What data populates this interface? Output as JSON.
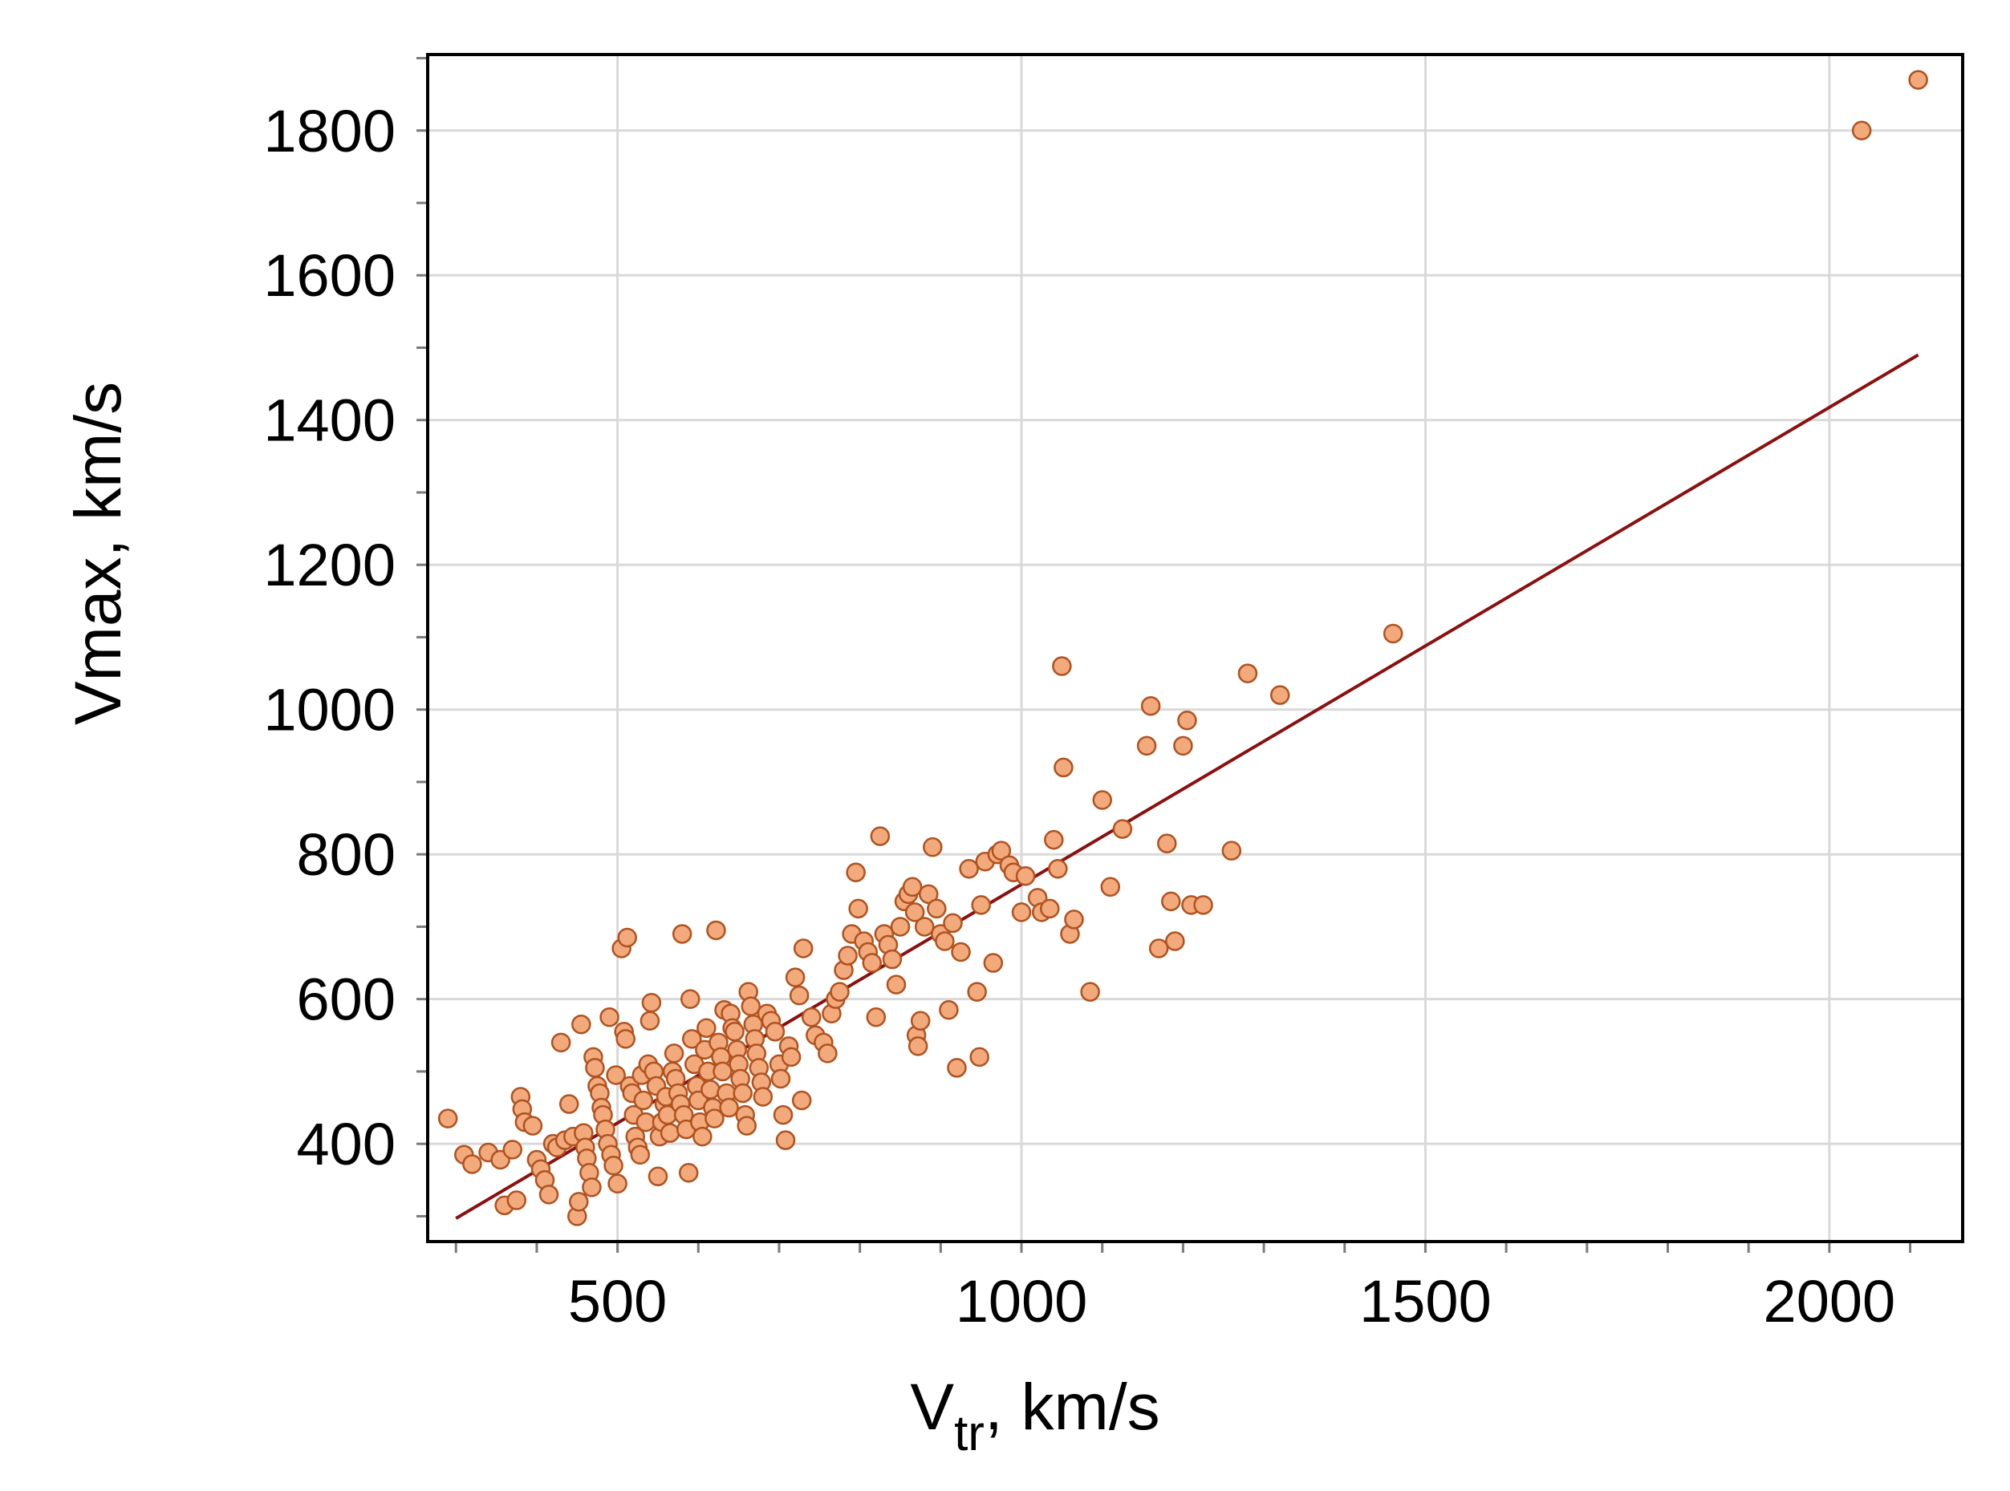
{
  "chart_data": {
    "type": "scatter",
    "title": "",
    "xlabel": {
      "main": "V",
      "sub": "tr",
      "rest": ", km/s"
    },
    "ylabel": "Vmax, km/s",
    "xlim": [
      265,
      2165
    ],
    "ylim": [
      265,
      1905
    ],
    "x_ticks": [
      500,
      1000,
      1500,
      2000
    ],
    "y_ticks": [
      400,
      600,
      800,
      1000,
      1200,
      1400,
      1600,
      1800
    ],
    "x_tick_labels": [
      "500",
      "1000",
      "1500",
      "2000"
    ],
    "y_tick_labels": [
      "400",
      "600",
      "800",
      "1000",
      "1200",
      "1400",
      "1600",
      "1800"
    ],
    "x_minor_step": 100,
    "y_minor_step": 100,
    "grid": true,
    "legend": "none",
    "point_color": "#f2a97c",
    "point_edge_color": "#b0521f",
    "line_color": "#8b1010",
    "regression_line": {
      "x": [
        300,
        2110
      ],
      "y": [
        297,
        1490
      ]
    },
    "points": [
      [
        290,
        435
      ],
      [
        310,
        385
      ],
      [
        320,
        372
      ],
      [
        340,
        388
      ],
      [
        355,
        378
      ],
      [
        360,
        315
      ],
      [
        370,
        392
      ],
      [
        375,
        322
      ],
      [
        380,
        465
      ],
      [
        382,
        448
      ],
      [
        385,
        430
      ],
      [
        395,
        425
      ],
      [
        400,
        378
      ],
      [
        405,
        365
      ],
      [
        410,
        350
      ],
      [
        415,
        330
      ],
      [
        420,
        400
      ],
      [
        425,
        395
      ],
      [
        430,
        540
      ],
      [
        435,
        405
      ],
      [
        440,
        455
      ],
      [
        445,
        410
      ],
      [
        450,
        300
      ],
      [
        452,
        320
      ],
      [
        455,
        565
      ],
      [
        458,
        415
      ],
      [
        460,
        395
      ],
      [
        462,
        380
      ],
      [
        465,
        360
      ],
      [
        468,
        340
      ],
      [
        470,
        520
      ],
      [
        472,
        505
      ],
      [
        475,
        480
      ],
      [
        478,
        470
      ],
      [
        480,
        450
      ],
      [
        482,
        440
      ],
      [
        485,
        420
      ],
      [
        488,
        400
      ],
      [
        490,
        575
      ],
      [
        492,
        385
      ],
      [
        495,
        370
      ],
      [
        498,
        495
      ],
      [
        500,
        345
      ],
      [
        505,
        670
      ],
      [
        508,
        555
      ],
      [
        510,
        545
      ],
      [
        512,
        685
      ],
      [
        515,
        480
      ],
      [
        518,
        470
      ],
      [
        520,
        440
      ],
      [
        522,
        410
      ],
      [
        525,
        395
      ],
      [
        528,
        385
      ],
      [
        530,
        495
      ],
      [
        532,
        460
      ],
      [
        535,
        430
      ],
      [
        538,
        510
      ],
      [
        540,
        570
      ],
      [
        542,
        595
      ],
      [
        545,
        500
      ],
      [
        548,
        480
      ],
      [
        550,
        355
      ],
      [
        552,
        410
      ],
      [
        555,
        430
      ],
      [
        558,
        455
      ],
      [
        560,
        465
      ],
      [
        562,
        440
      ],
      [
        565,
        415
      ],
      [
        568,
        500
      ],
      [
        570,
        525
      ],
      [
        572,
        490
      ],
      [
        575,
        470
      ],
      [
        578,
        455
      ],
      [
        580,
        690
      ],
      [
        582,
        440
      ],
      [
        585,
        420
      ],
      [
        588,
        360
      ],
      [
        590,
        600
      ],
      [
        592,
        545
      ],
      [
        595,
        510
      ],
      [
        598,
        480
      ],
      [
        600,
        460
      ],
      [
        602,
        430
      ],
      [
        605,
        410
      ],
      [
        608,
        530
      ],
      [
        610,
        560
      ],
      [
        612,
        500
      ],
      [
        615,
        475
      ],
      [
        618,
        450
      ],
      [
        620,
        435
      ],
      [
        622,
        695
      ],
      [
        625,
        540
      ],
      [
        628,
        520
      ],
      [
        630,
        500
      ],
      [
        632,
        585
      ],
      [
        635,
        470
      ],
      [
        638,
        450
      ],
      [
        640,
        580
      ],
      [
        642,
        560
      ],
      [
        645,
        555
      ],
      [
        648,
        530
      ],
      [
        650,
        510
      ],
      [
        652,
        490
      ],
      [
        655,
        470
      ],
      [
        658,
        440
      ],
      [
        660,
        425
      ],
      [
        662,
        610
      ],
      [
        665,
        590
      ],
      [
        668,
        565
      ],
      [
        670,
        545
      ],
      [
        672,
        525
      ],
      [
        675,
        505
      ],
      [
        678,
        485
      ],
      [
        680,
        465
      ],
      [
        685,
        580
      ],
      [
        690,
        570
      ],
      [
        695,
        555
      ],
      [
        700,
        510
      ],
      [
        702,
        490
      ],
      [
        705,
        440
      ],
      [
        708,
        405
      ],
      [
        712,
        535
      ],
      [
        715,
        520
      ],
      [
        720,
        630
      ],
      [
        725,
        605
      ],
      [
        728,
        460
      ],
      [
        730,
        670
      ],
      [
        740,
        575
      ],
      [
        745,
        550
      ],
      [
        755,
        540
      ],
      [
        760,
        525
      ],
      [
        765,
        580
      ],
      [
        770,
        600
      ],
      [
        775,
        610
      ],
      [
        780,
        640
      ],
      [
        785,
        660
      ],
      [
        790,
        690
      ],
      [
        795,
        775
      ],
      [
        798,
        725
      ],
      [
        805,
        680
      ],
      [
        810,
        665
      ],
      [
        815,
        650
      ],
      [
        820,
        575
      ],
      [
        825,
        825
      ],
      [
        830,
        690
      ],
      [
        835,
        675
      ],
      [
        840,
        655
      ],
      [
        845,
        620
      ],
      [
        850,
        700
      ],
      [
        855,
        735
      ],
      [
        860,
        745
      ],
      [
        865,
        755
      ],
      [
        868,
        720
      ],
      [
        870,
        550
      ],
      [
        872,
        535
      ],
      [
        875,
        570
      ],
      [
        880,
        700
      ],
      [
        885,
        745
      ],
      [
        890,
        810
      ],
      [
        895,
        725
      ],
      [
        900,
        690
      ],
      [
        905,
        680
      ],
      [
        910,
        585
      ],
      [
        915,
        705
      ],
      [
        920,
        505
      ],
      [
        925,
        665
      ],
      [
        935,
        780
      ],
      [
        945,
        610
      ],
      [
        948,
        520
      ],
      [
        950,
        730
      ],
      [
        955,
        790
      ],
      [
        965,
        650
      ],
      [
        970,
        800
      ],
      [
        975,
        805
      ],
      [
        985,
        785
      ],
      [
        990,
        775
      ],
      [
        1000,
        720
      ],
      [
        1005,
        770
      ],
      [
        1020,
        740
      ],
      [
        1025,
        720
      ],
      [
        1035,
        725
      ],
      [
        1040,
        820
      ],
      [
        1045,
        780
      ],
      [
        1050,
        1060
      ],
      [
        1052,
        920
      ],
      [
        1060,
        690
      ],
      [
        1065,
        710
      ],
      [
        1085,
        610
      ],
      [
        1100,
        875
      ],
      [
        1110,
        755
      ],
      [
        1125,
        835
      ],
      [
        1155,
        950
      ],
      [
        1160,
        1005
      ],
      [
        1170,
        670
      ],
      [
        1180,
        815
      ],
      [
        1185,
        735
      ],
      [
        1190,
        680
      ],
      [
        1200,
        950
      ],
      [
        1205,
        985
      ],
      [
        1210,
        730
      ],
      [
        1225,
        730
      ],
      [
        1260,
        805
      ],
      [
        1280,
        1050
      ],
      [
        1320,
        1020
      ],
      [
        1460,
        1105
      ],
      [
        2040,
        1800
      ],
      [
        2110,
        1870
      ]
    ]
  }
}
